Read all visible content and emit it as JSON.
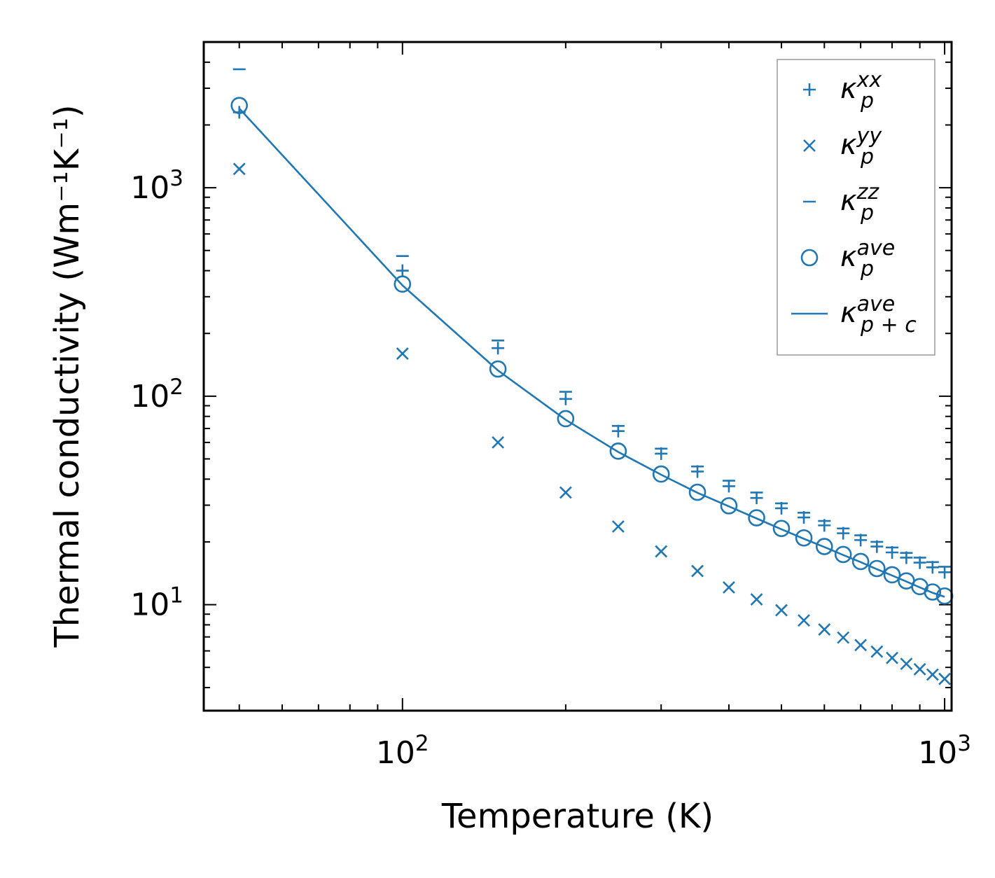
{
  "chart_data": {
    "type": "scatter",
    "title": "",
    "xlabel": "Temperature (K)",
    "ylabel": "Thermal conductivity (Wm⁻¹K⁻¹)",
    "xscale": "log",
    "yscale": "log",
    "xlim": [
      43,
      1030
    ],
    "ylim": [
      3.1,
      5000
    ],
    "x_ticks": [
      {
        "value": 100,
        "base": "10",
        "exp": "2"
      },
      {
        "value": 1000,
        "base": "10",
        "exp": "3"
      }
    ],
    "y_ticks": [
      {
        "value": 10,
        "base": "10",
        "exp": "1"
      },
      {
        "value": 100,
        "base": "10",
        "exp": "2"
      },
      {
        "value": 1000,
        "base": "10",
        "exp": "3"
      }
    ],
    "color": "#1f77b4",
    "legend_position": "upper right",
    "x": [
      50,
      100,
      150,
      200,
      250,
      300,
      350,
      400,
      450,
      500,
      550,
      600,
      650,
      700,
      750,
      800,
      850,
      900,
      950,
      1000
    ],
    "series": [
      {
        "name": "kxx",
        "label_base": "κ",
        "label_sup": "xx",
        "label_sub": "p",
        "marker": "plus",
        "values": [
          2300,
          400,
          170,
          97,
          68,
          53,
          43.5,
          37,
          32.5,
          29,
          26.2,
          24,
          22,
          20.4,
          19,
          17.8,
          16.8,
          15.9,
          15.1,
          14.3
        ]
      },
      {
        "name": "kyy",
        "label_base": "κ",
        "label_sup": "yy",
        "label_sub": "p",
        "marker": "x",
        "values": [
          1230,
          160,
          60,
          34.5,
          23.7,
          18,
          14.5,
          12.1,
          10.6,
          9.4,
          8.4,
          7.6,
          6.95,
          6.4,
          5.95,
          5.55,
          5.2,
          4.9,
          4.62,
          4.4
        ]
      },
      {
        "name": "kzz",
        "label_base": "κ",
        "label_sup": "zz",
        "label_sub": "p",
        "marker": "hline",
        "values": [
          3700,
          470,
          185,
          105,
          72,
          56,
          46,
          39.3,
          34.5,
          30.6,
          27.6,
          25.2,
          23.2,
          21.5,
          20,
          18.8,
          17.7,
          16.8,
          16,
          15.2
        ]
      },
      {
        "name": "kave",
        "label_base": "κ",
        "label_sup": "ave",
        "label_sub": "p",
        "marker": "circle",
        "values": [
          2480,
          345,
          135,
          78,
          54.5,
          42.3,
          34.6,
          29.8,
          26.1,
          23.2,
          20.9,
          19,
          17.4,
          16.1,
          14.9,
          13.9,
          13,
          12.2,
          11.5,
          11
        ]
      },
      {
        "name": "kave_pc",
        "label_base": "κ",
        "label_sup": "ave",
        "label_sub": "p + c",
        "marker": "line",
        "values": [
          2400,
          340,
          133,
          77,
          54,
          42,
          34.4,
          29.6,
          25.9,
          23,
          20.7,
          18.9,
          17.3,
          16,
          14.8,
          13.8,
          12.9,
          12.1,
          11.4,
          10.9
        ]
      }
    ]
  }
}
